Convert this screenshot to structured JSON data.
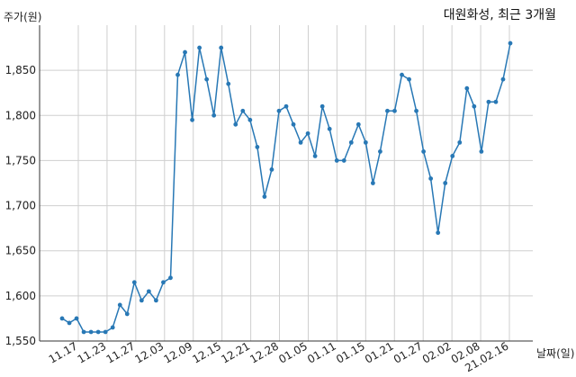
{
  "chart_data": {
    "type": "line",
    "title": "대원화성, 최근 3개월",
    "ylabel": "주가(원)",
    "xlabel": "날짜(일)",
    "ylim": [
      1550,
      1900
    ],
    "yticks": [
      "1,550",
      "1,600",
      "1,650",
      "1,700",
      "1,750",
      "1,800",
      "1,850"
    ],
    "xticks": [
      "11.17",
      "11.23",
      "11.27",
      "12.03",
      "12.09",
      "12.15",
      "12.21",
      "12.28",
      "01.05",
      "01.11",
      "01.15",
      "01.21",
      "01.27",
      "02.02",
      "02.08",
      "21.02.16"
    ],
    "grid": true,
    "color": "#2878b5",
    "series": [
      {
        "values": [
          1575,
          1570,
          1575,
          1560,
          1560,
          1560,
          1560,
          1565,
          1590,
          1580,
          1615,
          1595,
          1605,
          1595,
          1615,
          1620,
          1845,
          1870,
          1795,
          1875,
          1840,
          1800,
          1875,
          1835,
          1790,
          1805,
          1795,
          1765,
          1710,
          1740,
          1805,
          1810,
          1790,
          1770,
          1780,
          1755,
          1810,
          1785,
          1750,
          1750,
          1770,
          1790,
          1770,
          1725,
          1760,
          1805,
          1805,
          1845,
          1840,
          1805,
          1760,
          1730,
          1670,
          1725,
          1755,
          1770,
          1830,
          1810,
          1760,
          1815,
          1815,
          1840,
          1880
        ]
      }
    ]
  }
}
